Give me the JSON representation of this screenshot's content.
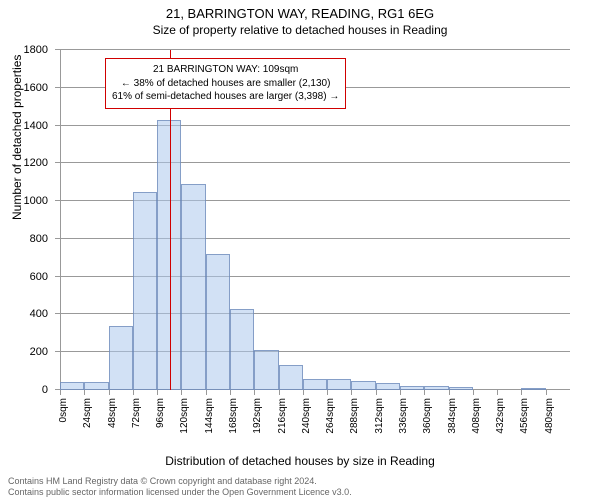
{
  "header": {
    "title": "21, BARRINGTON WAY, READING, RG1 6EG",
    "subtitle": "Size of property relative to detached houses in Reading"
  },
  "axes": {
    "y_title": "Number of detached properties",
    "x_title": "Distribution of detached houses by size in Reading",
    "ylim_max": 1800,
    "ytick_step": 200,
    "yticks": [
      0,
      200,
      400,
      600,
      800,
      1000,
      1200,
      1400,
      1600,
      1800
    ]
  },
  "chart": {
    "type": "histogram",
    "bar_fill": "rgba(173,200,237,0.55)",
    "bar_border": "rgba(100,130,180,0.7)",
    "grid_color": "#999999",
    "marker_color": "#d00000",
    "background_color": "#ffffff",
    "bin_width": 24,
    "bins": [
      {
        "label": "0sqm",
        "value": 40
      },
      {
        "label": "24sqm",
        "value": 40
      },
      {
        "label": "48sqm",
        "value": 340
      },
      {
        "label": "72sqm",
        "value": 1050
      },
      {
        "label": "96sqm",
        "value": 1430
      },
      {
        "label": "120sqm",
        "value": 1090
      },
      {
        "label": "144sqm",
        "value": 720
      },
      {
        "label": "168sqm",
        "value": 430
      },
      {
        "label": "192sqm",
        "value": 210
      },
      {
        "label": "216sqm",
        "value": 130
      },
      {
        "label": "240sqm",
        "value": 60
      },
      {
        "label": "264sqm",
        "value": 60
      },
      {
        "label": "288sqm",
        "value": 50
      },
      {
        "label": "312sqm",
        "value": 35
      },
      {
        "label": "336sqm",
        "value": 20
      },
      {
        "label": "360sqm",
        "value": 20
      },
      {
        "label": "384sqm",
        "value": 15
      },
      {
        "label": "408sqm",
        "value": 0
      },
      {
        "label": "432sqm",
        "value": 0
      },
      {
        "label": "456sqm",
        "value": 10
      },
      {
        "label": "480sqm",
        "value": 0
      }
    ],
    "marker_sqm": 109
  },
  "callout": {
    "line1": "21 BARRINGTON WAY: 109sqm",
    "line2": "← 38% of detached houses are smaller (2,130)",
    "line3": "61% of semi-detached houses are larger (3,398) →"
  },
  "footer": {
    "line1": "Contains HM Land Registry data © Crown copyright and database right 2024.",
    "line2": "Contains public sector information licensed under the Open Government Licence v3.0."
  }
}
